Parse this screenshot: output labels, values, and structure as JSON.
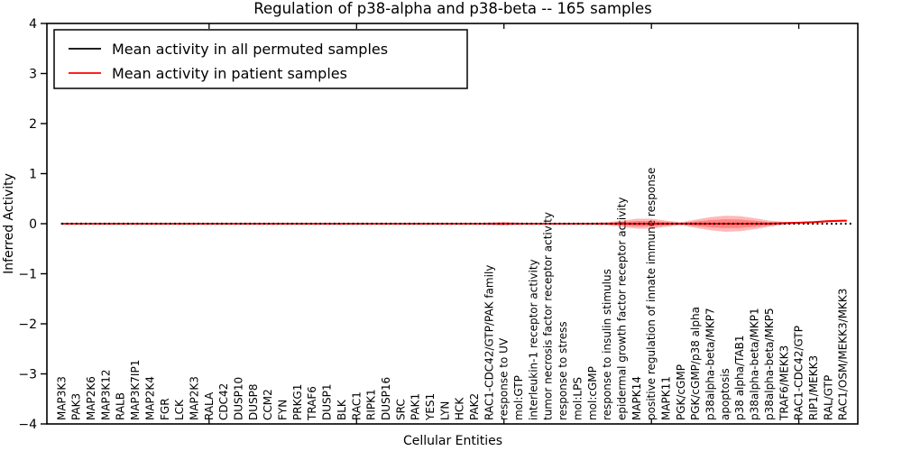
{
  "chart_data": {
    "type": "line",
    "title": "Regulation of p38-alpha and p38-beta -- 165 samples",
    "xlabel": "Cellular Entities",
    "ylabel": "Inferred Activity",
    "ylim": [
      -4,
      4
    ],
    "grid": false,
    "legend_position": "upper left",
    "ytick_values": [
      4,
      3,
      2,
      1,
      0,
      -1,
      -2,
      -3,
      -4
    ],
    "ytick_labels": [
      "4",
      "3",
      "2",
      "1",
      "0",
      "−1",
      "−2",
      "−3",
      "−4"
    ],
    "top_tick_indices": [
      10,
      20,
      30,
      40,
      50
    ],
    "categories": [
      "MAP3K3",
      "PAK3",
      "MAP2K6",
      "MAP3K12",
      "RALB",
      "MAP3K7IP1",
      "MAP2K4",
      "FGR",
      "LCK",
      "MAP2K3",
      "RALA",
      "CDC42",
      "DUSP10",
      "DUSP8",
      "CCM2",
      "FYN",
      "PRKG1",
      "TRAF6",
      "DUSP1",
      "BLK",
      "RAC1",
      "RIPK1",
      "DUSP16",
      "SRC",
      "PAK1",
      "YES1",
      "LYN",
      "HCK",
      "PAK2",
      "RAC1-CDC42/GTP/PAK family",
      "response to UV",
      "mol:GTP",
      "interleukin-1 receptor activity",
      "tumor necrosis factor receptor activity",
      "response to stress",
      "mol:LPS",
      "mol:cGMP",
      "response to insulin stimulus",
      "epidermal growth factor receptor activity",
      "MAPK14",
      "positive regulation of innate immune response",
      "MAPK11",
      "PGK/cGMP",
      "PGK/cGMP/p38 alpha",
      "p38alpha-beta/MKP7",
      "apoptosis",
      "p38 alpha/TAB1",
      "p38alpha-beta/MKP1",
      "p38alpha-beta/MKP5",
      "TRAF6/MEKK3",
      "RAC1-CDC42/GTP",
      "RIP1/MEKK3",
      "RAL/GTP",
      "RAC1/OSM/MEKK3/MKK3"
    ],
    "series": [
      {
        "name": "Mean activity in all permuted samples",
        "color": "#000000",
        "style": "dotted",
        "values": [
          0,
          0,
          0,
          0,
          0,
          0,
          0,
          0,
          0,
          0,
          0,
          0,
          0,
          0,
          0,
          0,
          0,
          0,
          0,
          0,
          0,
          0,
          0,
          0,
          0,
          0,
          0,
          0,
          0,
          0,
          0,
          0,
          0,
          0,
          0,
          0,
          0,
          0,
          0,
          0,
          0,
          0,
          0,
          0,
          0,
          0,
          0,
          0,
          0,
          0,
          0,
          0,
          0,
          0
        ]
      },
      {
        "name": "Mean activity in patient samples",
        "color": "#ff0000",
        "style": "solid",
        "values": [
          0,
          0,
          0,
          0,
          0,
          0,
          0,
          0,
          0,
          0,
          0,
          0,
          0,
          0,
          0,
          0,
          0,
          0,
          0,
          0,
          0,
          0,
          0,
          0,
          0,
          0,
          0,
          0,
          0,
          0,
          0,
          0,
          0,
          0,
          0,
          0,
          0,
          0,
          0,
          0,
          0,
          0,
          0,
          0,
          0,
          0,
          0,
          0,
          0,
          0.01,
          0.02,
          0.03,
          0.05,
          0.06
        ]
      }
    ],
    "band": {
      "series": "Mean activity in patient samples",
      "color": "#ff0000",
      "alpha": 0.28,
      "half_heights": [
        0.012,
        0.012,
        0.012,
        0.012,
        0.012,
        0.012,
        0.012,
        0.012,
        0.012,
        0.012,
        0.012,
        0.012,
        0.012,
        0.012,
        0.012,
        0.012,
        0.012,
        0.012,
        0.012,
        0.012,
        0.012,
        0.012,
        0.012,
        0.012,
        0.012,
        0.012,
        0.012,
        0.012,
        0.012,
        0.025,
        0.035,
        0.02,
        0.012,
        0.012,
        0.015,
        0.015,
        0.02,
        0.03,
        0.06,
        0.1,
        0.1,
        0.06,
        0.03,
        0.08,
        0.13,
        0.16,
        0.15,
        0.11,
        0.06,
        0.025,
        0.015,
        0.012,
        0.012,
        0.012
      ]
    }
  }
}
